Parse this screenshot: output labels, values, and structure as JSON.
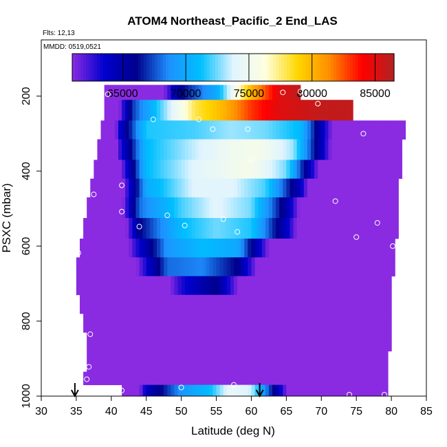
{
  "chart_data": {
    "type": "heatmap",
    "title": "ATOM4 Northeast_Pacific_2 End_LAS",
    "flights_label": "Flts: 12,13",
    "date_label": "MMDD: 0519,0521",
    "xlabel": "Latitude (deg N)",
    "ylabel": "PSXC (mbar)",
    "xlim": [
      30,
      85
    ],
    "ylim": [
      1000,
      50
    ],
    "y_inverted": true,
    "x_ticks": [
      30,
      35,
      40,
      45,
      50,
      55,
      60,
      65,
      70,
      75,
      80,
      85
    ],
    "y_ticks": [
      200,
      400,
      600,
      800,
      1000
    ],
    "colorbar": {
      "range": [
        61000,
        86500
      ],
      "ticks": [
        65000,
        70000,
        75000,
        80000,
        85000
      ],
      "colors": [
        "#8a2be2",
        "#0000cd",
        "#00008b",
        "#1e90ff",
        "#00bfff",
        "#e0f4ff",
        "#ffffe0",
        "#ffd700",
        "#ff8c00",
        "#ff0000",
        "#b22222"
      ]
    },
    "rows": [
      {
        "p": [
          170,
          210
        ],
        "lat": [
          39,
          67
        ],
        "points": [
          [
            39,
            47000
          ],
          [
            45,
            56000
          ],
          [
            50,
            66000
          ],
          [
            55,
            70000
          ],
          [
            60,
            80000
          ],
          [
            64,
            85000
          ],
          [
            67,
            86000
          ]
        ]
      },
      {
        "p": [
          210,
          265
        ],
        "lat": [
          39,
          74.5
        ],
        "points": [
          [
            39,
            54000
          ],
          [
            43,
            67000
          ],
          [
            47,
            72000
          ],
          [
            52,
            78000
          ],
          [
            56,
            80000
          ],
          [
            60,
            83000
          ],
          [
            64,
            85000
          ],
          [
            70,
            86000
          ],
          [
            74.5,
            86000
          ]
        ]
      },
      {
        "p": [
          265,
          315
        ],
        "lat": [
          38.5,
          82
        ],
        "points": [
          [
            38.5,
            48000
          ],
          [
            41,
            63000
          ],
          [
            45,
            71500
          ],
          [
            52,
            72000
          ],
          [
            57,
            73000
          ],
          [
            62,
            72500
          ],
          [
            67,
            71000
          ],
          [
            72,
            60000
          ],
          [
            76,
            52000
          ],
          [
            82,
            43000
          ]
        ]
      },
      {
        "p": [
          315,
          370
        ],
        "lat": [
          38,
          81.5
        ],
        "points": [
          [
            38,
            46000
          ],
          [
            41,
            62000
          ],
          [
            45,
            71000
          ],
          [
            52,
            73500
          ],
          [
            57,
            75000
          ],
          [
            61,
            75500
          ],
          [
            66,
            73000
          ],
          [
            71,
            62000
          ],
          [
            75,
            52000
          ],
          [
            81.5,
            43000
          ]
        ]
      },
      {
        "p": [
          370,
          420
        ],
        "lat": [
          37.5,
          81.5
        ],
        "points": [
          [
            37.5,
            45000
          ],
          [
            41,
            60000
          ],
          [
            45,
            71000
          ],
          [
            52,
            74000
          ],
          [
            57,
            75000
          ],
          [
            60,
            75500
          ],
          [
            65,
            72500
          ],
          [
            70,
            60000
          ],
          [
            74,
            51000
          ],
          [
            81.5,
            43000
          ]
        ]
      },
      {
        "p": [
          420,
          470
        ],
        "lat": [
          37,
          81
        ],
        "points": [
          [
            37,
            44000
          ],
          [
            41,
            59000
          ],
          [
            45,
            70000
          ],
          [
            52,
            74000
          ],
          [
            57,
            74000
          ],
          [
            62,
            72000
          ],
          [
            67,
            64000
          ],
          [
            71,
            53000
          ],
          [
            81,
            43000
          ]
        ]
      },
      {
        "p": [
          470,
          525
        ],
        "lat": [
          36.5,
          81
        ],
        "points": [
          [
            36.5,
            43000
          ],
          [
            40,
            56000
          ],
          [
            44,
            68000
          ],
          [
            50,
            72000
          ],
          [
            55,
            74000
          ],
          [
            60,
            72500
          ],
          [
            65,
            65000
          ],
          [
            70,
            54000
          ],
          [
            81,
            43000
          ]
        ]
      },
      {
        "p": [
          525,
          580
        ],
        "lat": [
          36,
          81
        ],
        "points": [
          [
            36,
            42000
          ],
          [
            40,
            55000
          ],
          [
            44,
            66000
          ],
          [
            50,
            71000
          ],
          [
            55,
            72500
          ],
          [
            60,
            71500
          ],
          [
            65,
            64000
          ],
          [
            70,
            54000
          ],
          [
            81,
            43000
          ]
        ]
      },
      {
        "p": [
          580,
          630
        ],
        "lat": [
          35.5,
          80.5
        ],
        "points": [
          [
            35.5,
            42000
          ],
          [
            39,
            53000
          ],
          [
            43,
            62000
          ],
          [
            48,
            69000
          ],
          [
            53,
            71000
          ],
          [
            58,
            70000
          ],
          [
            63,
            60000
          ],
          [
            68,
            51000
          ],
          [
            80.5,
            43000
          ]
        ]
      },
      {
        "p": [
          630,
          680
        ],
        "lat": [
          35,
          80.5
        ],
        "points": [
          [
            35,
            41000
          ],
          [
            39,
            51000
          ],
          [
            43,
            60000
          ],
          [
            48,
            68000
          ],
          [
            53,
            68500
          ],
          [
            58,
            66000
          ],
          [
            63,
            57000
          ],
          [
            68,
            50000
          ],
          [
            80.5,
            43000
          ]
        ]
      },
      {
        "p": [
          680,
          730
        ],
        "lat": [
          35,
          80
        ],
        "points": [
          [
            35,
            41000
          ],
          [
            39,
            49000
          ],
          [
            45,
            57000
          ],
          [
            50,
            63000
          ],
          [
            55,
            66000
          ],
          [
            60,
            58000
          ],
          [
            65,
            51000
          ],
          [
            70,
            48000
          ],
          [
            80,
            43000
          ]
        ]
      },
      {
        "p": [
          730,
          780
        ],
        "lat": [
          35.5,
          80
        ],
        "points": [
          [
            35.5,
            40000
          ],
          [
            40,
            48000
          ],
          [
            45,
            51000
          ],
          [
            50,
            51000
          ],
          [
            55,
            51000
          ],
          [
            60,
            50000
          ],
          [
            65,
            50000
          ],
          [
            70,
            49000
          ],
          [
            80,
            43000
          ]
        ]
      },
      {
        "p": [
          780,
          830
        ],
        "lat": [
          36,
          80
        ],
        "points": [
          [
            36,
            40000
          ],
          [
            40,
            47000
          ],
          [
            45,
            51000
          ],
          [
            55,
            51000
          ],
          [
            65,
            51000
          ],
          [
            70,
            49000
          ],
          [
            80,
            43000
          ]
        ]
      },
      {
        "p": [
          830,
          880
        ],
        "lat": [
          36.5,
          80
        ],
        "points": [
          [
            36.5,
            40000
          ],
          [
            40,
            46000
          ],
          [
            45,
            51000
          ],
          [
            55,
            51000
          ],
          [
            65,
            51000
          ],
          [
            70,
            49000
          ],
          [
            80,
            43000
          ]
        ]
      },
      {
        "p": [
          880,
          935
        ],
        "lat": [
          36.5,
          79.5
        ],
        "points": [
          [
            36.5,
            40000
          ],
          [
            40,
            45000
          ],
          [
            44,
            50000
          ],
          [
            50,
            51000
          ],
          [
            60,
            51000
          ],
          [
            70,
            49000
          ],
          [
            79.5,
            43000
          ]
        ]
      },
      {
        "p": [
          935,
          970
        ],
        "lat": [
          36,
          79.5
        ],
        "points": [
          [
            36,
            40000
          ],
          [
            40,
            44000
          ],
          [
            45,
            50000
          ],
          [
            55,
            51000
          ],
          [
            65,
            51000
          ],
          [
            70,
            49000
          ],
          [
            79.5,
            43000
          ]
        ]
      },
      {
        "p": [
          970,
          1000
        ],
        "lat": [
          41.5,
          79.5
        ],
        "points": [
          [
            41.5,
            53000
          ],
          [
            45,
            64000
          ],
          [
            50,
            69000
          ],
          [
            54,
            71000
          ],
          [
            57,
            74500
          ],
          [
            60,
            73500
          ],
          [
            64,
            64000
          ],
          [
            70,
            48000
          ],
          [
            79.5,
            43000
          ]
        ]
      }
    ],
    "samples": [
      [
        39.5,
        195
      ],
      [
        46,
        262
      ],
      [
        52.5,
        262
      ],
      [
        54.5,
        288
      ],
      [
        59.5,
        288
      ],
      [
        64.5,
        190
      ],
      [
        67,
        188
      ],
      [
        69.5,
        220
      ],
      [
        76,
        300
      ],
      [
        60,
        370
      ],
      [
        41.5,
        438
      ],
      [
        37.5,
        462
      ],
      [
        41.5,
        508
      ],
      [
        44,
        548
      ],
      [
        48,
        518
      ],
      [
        50.5,
        545
      ],
      [
        56,
        528
      ],
      [
        58,
        562
      ],
      [
        72,
        480
      ],
      [
        78,
        538
      ],
      [
        75,
        576
      ],
      [
        80.2,
        600
      ],
      [
        35.3,
        618
      ],
      [
        37,
        835
      ],
      [
        36.8,
        922
      ],
      [
        36.5,
        955
      ],
      [
        41.5,
        985
      ],
      [
        50,
        977
      ],
      [
        57.5,
        970
      ],
      [
        74,
        996
      ],
      [
        79,
        996
      ]
    ],
    "arrows": [
      34.8,
      61.2
    ]
  }
}
